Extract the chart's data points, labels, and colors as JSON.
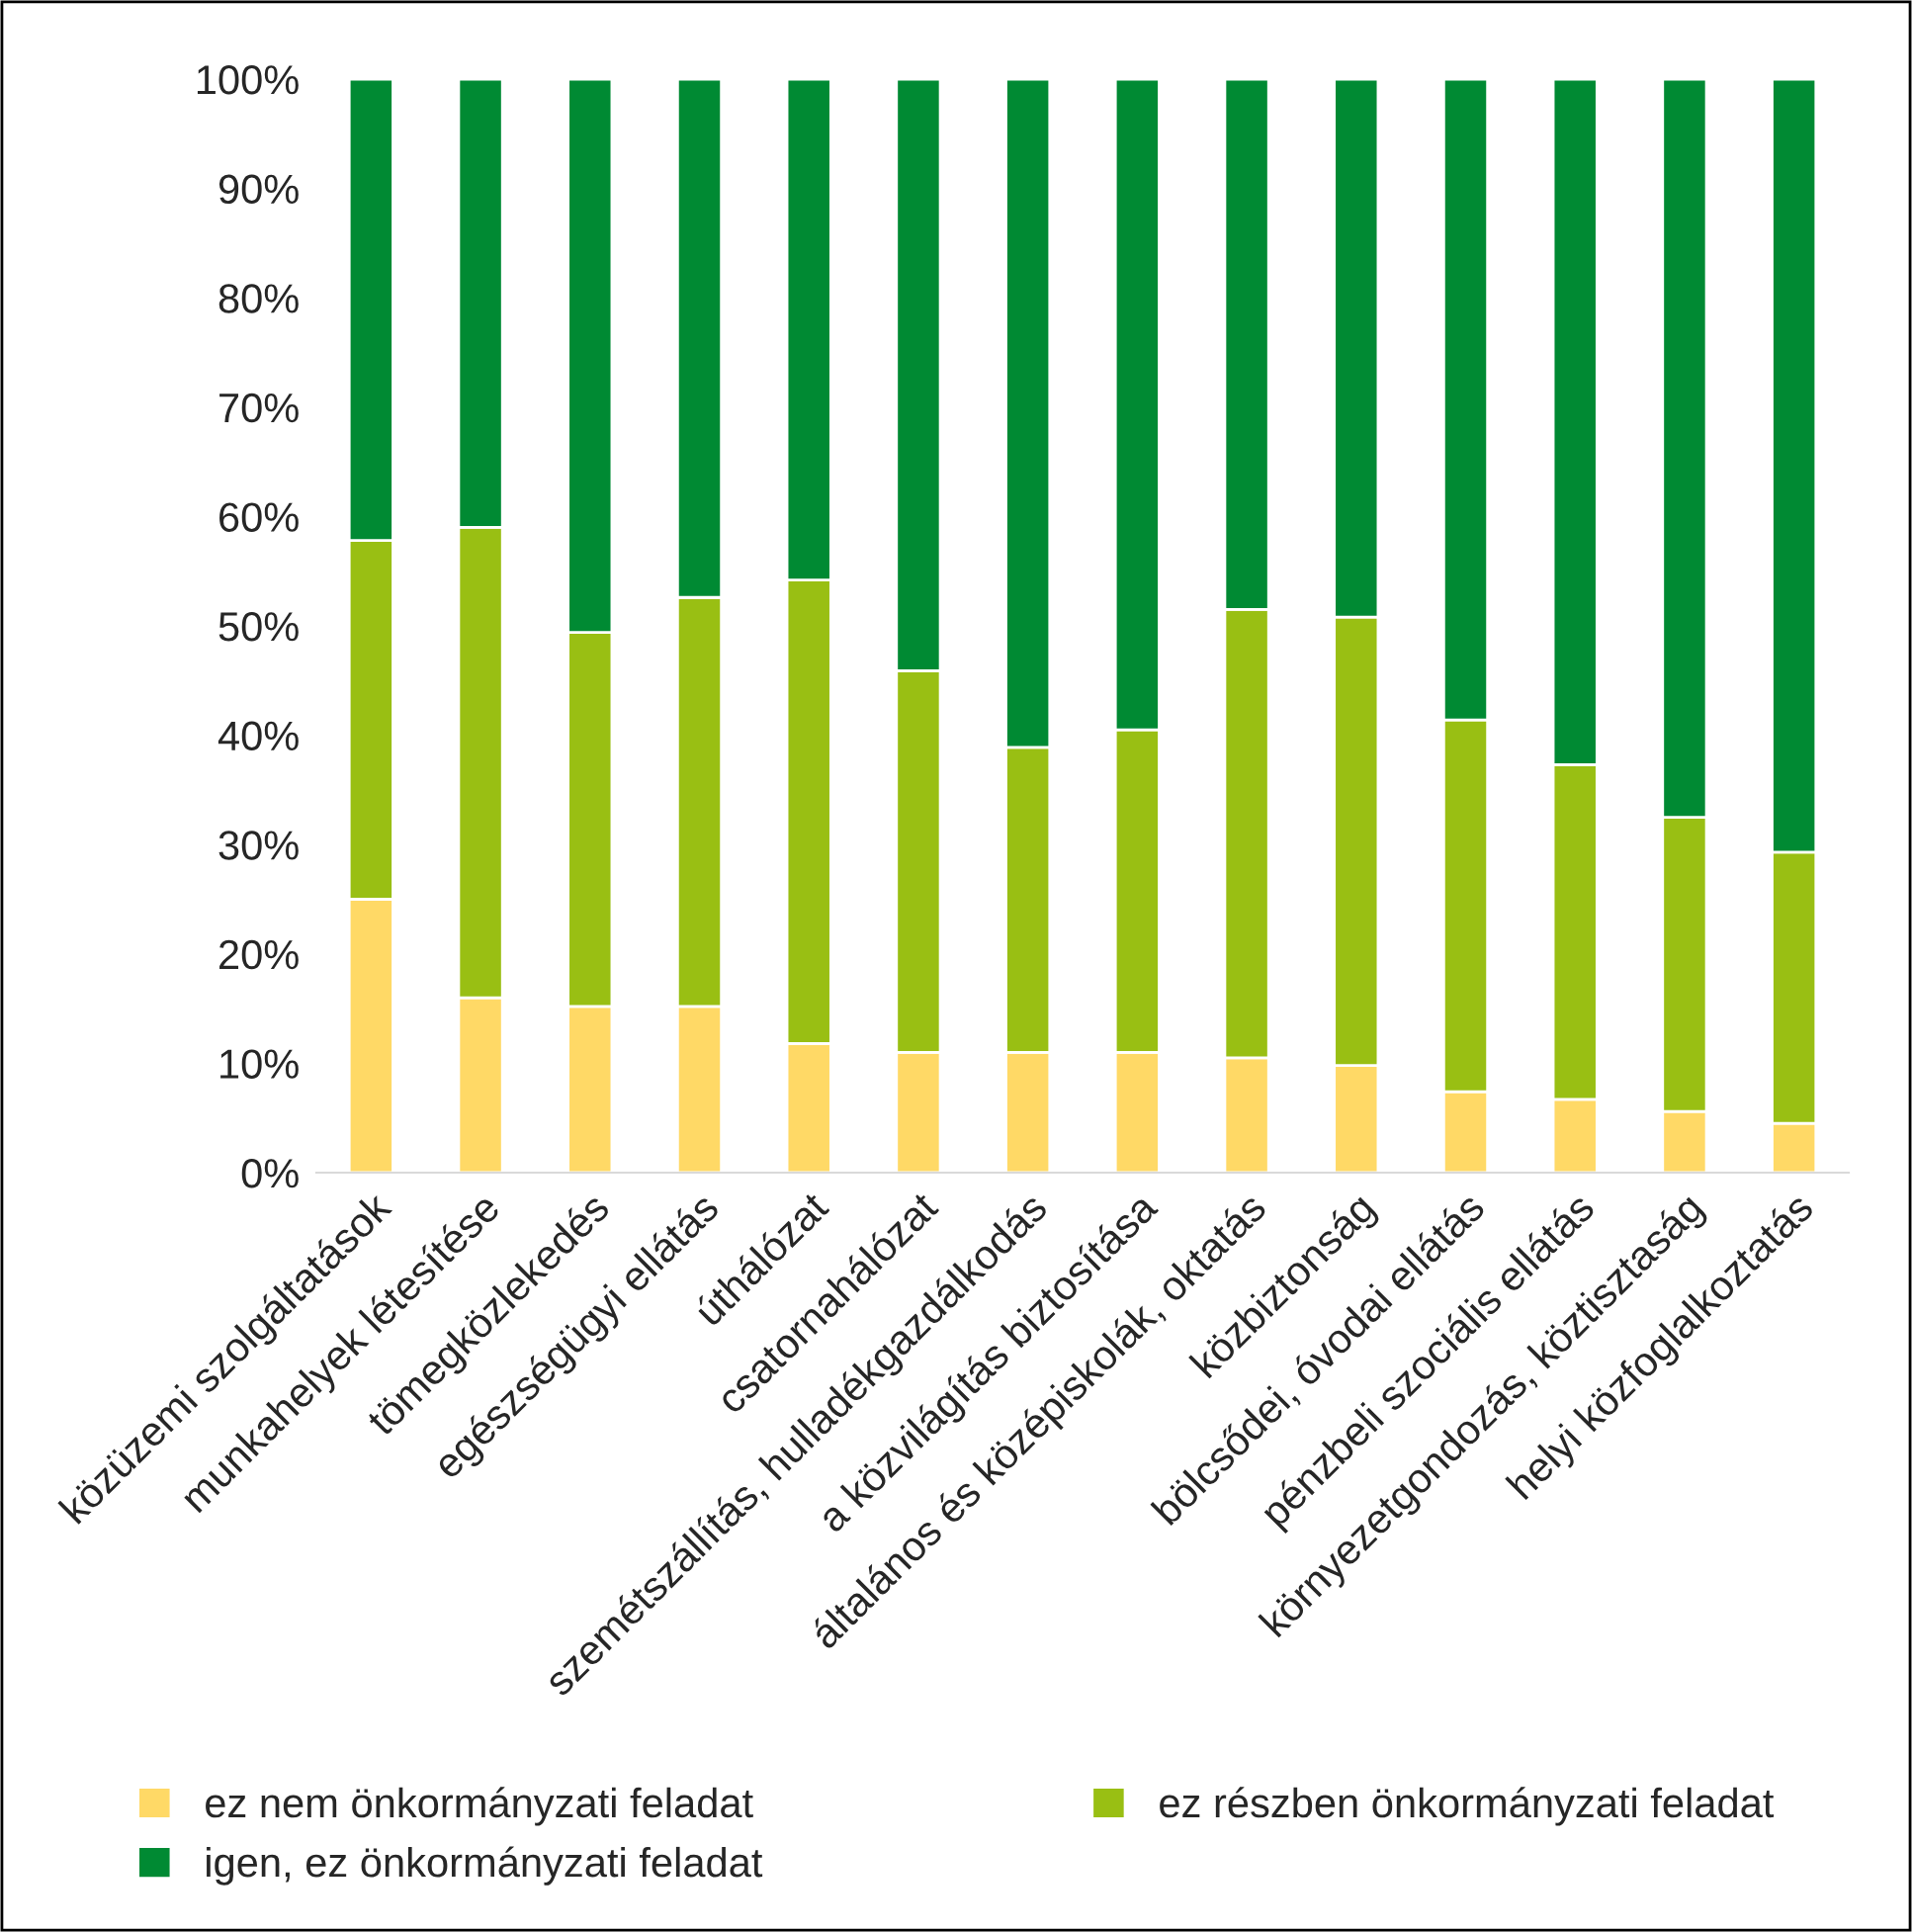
{
  "chart_data": {
    "type": "bar",
    "stacked": true,
    "categories": [
      "közüzemi szolgáltatások",
      "munkahelyek létesítése",
      "tömegközlekedés",
      "egészségügyi ellátás",
      "úthálózat",
      "csatornahálózat",
      "szemétszállítás, hulladékgazdálkodás",
      "a közvilágítás biztosítása",
      "általános és középiskolák, oktatás",
      "közbiztonság",
      "bölcsődei, óvodai ellátás",
      "pénzbeli szociális ellátás",
      "környezetgondozás, köztisztaság",
      "helyi közfoglalkoztatás"
    ],
    "series": [
      {
        "name": "ez nem önkormányzati feladat",
        "color": "#ffd966",
        "values": [
          25.0,
          16.0,
          15.2,
          15.2,
          11.8,
          11.0,
          11.0,
          11.0,
          10.5,
          9.8,
          7.4,
          6.7,
          5.6,
          4.5
        ]
      },
      {
        "name": "ez részben önkormányzati feladat",
        "color": "#99bf13",
        "values": [
          32.8,
          43.0,
          34.2,
          37.4,
          42.4,
          34.9,
          27.9,
          29.5,
          41.0,
          41.0,
          34.0,
          30.6,
          26.9,
          24.8
        ]
      },
      {
        "name": "igen, ez önkormányzati feladat",
        "color": "#008a33",
        "values": [
          42.2,
          41.0,
          50.6,
          47.4,
          45.8,
          54.1,
          61.1,
          59.5,
          48.5,
          49.2,
          58.6,
          62.7,
          67.5,
          70.7
        ]
      }
    ],
    "ylim": [
      0,
      100
    ],
    "yticks": [
      {
        "value": 0,
        "label": "0%"
      },
      {
        "value": 10,
        "label": "10%"
      },
      {
        "value": 20,
        "label": "20%"
      },
      {
        "value": 30,
        "label": "30%"
      },
      {
        "value": 40,
        "label": "40%"
      },
      {
        "value": 50,
        "label": "50%"
      },
      {
        "value": 60,
        "label": "60%"
      },
      {
        "value": 70,
        "label": "70%"
      },
      {
        "value": 80,
        "label": "80%"
      },
      {
        "value": 90,
        "label": "90%"
      },
      {
        "value": 100,
        "label": "100%"
      }
    ],
    "legend": "bottom"
  }
}
